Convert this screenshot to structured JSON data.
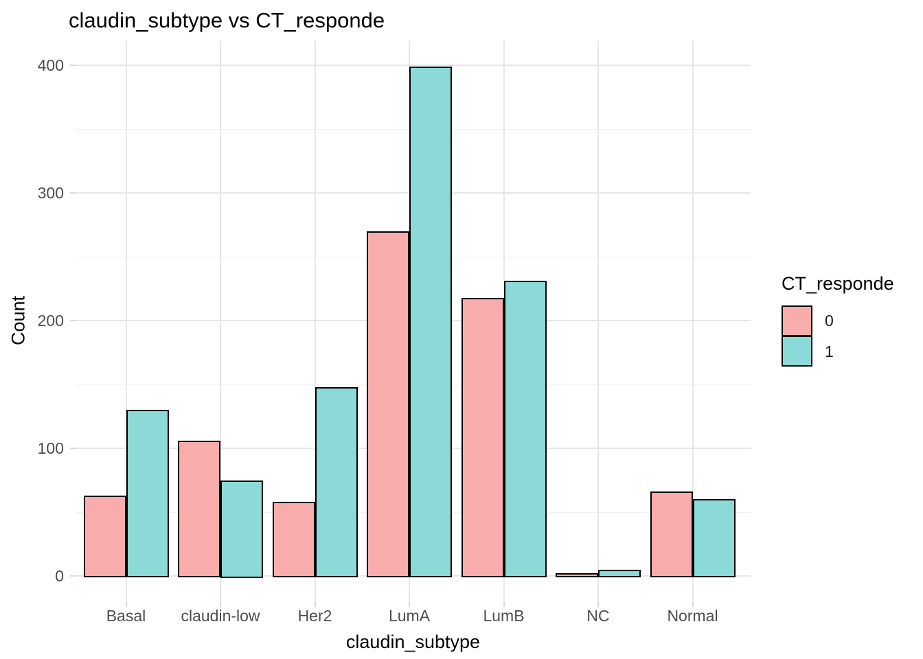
{
  "title": "claudin_subtype vs CT_responde",
  "chart_data": {
    "type": "bar",
    "grouped": true,
    "title": "claudin_subtype vs CT_responde",
    "xlabel": "claudin_subtype",
    "ylabel": "Count",
    "categories": [
      "Basal",
      "claudin-low",
      "Her2",
      "LumA",
      "LumB",
      "NC",
      "Normal"
    ],
    "series": [
      {
        "name": "0",
        "color": "#F9ACAC",
        "values": [
          63,
          106,
          58,
          270,
          218,
          2,
          66
        ]
      },
      {
        "name": "1",
        "color": "#8BDAD8",
        "values": [
          130,
          75,
          148,
          399,
          231,
          5,
          60
        ]
      }
    ],
    "ylim": [
      0,
      400
    ],
    "yticks": [
      0,
      100,
      200,
      300,
      400
    ],
    "yticks_minor": [
      50,
      150,
      250,
      350
    ],
    "grid": true,
    "legend_title": "CT_responde",
    "legend_position": "right",
    "bar_border_color": "#000000",
    "background_color": "#ffffff",
    "gridline_color": "#e7e7e7",
    "tick_label_color": "#4d4d4d"
  }
}
